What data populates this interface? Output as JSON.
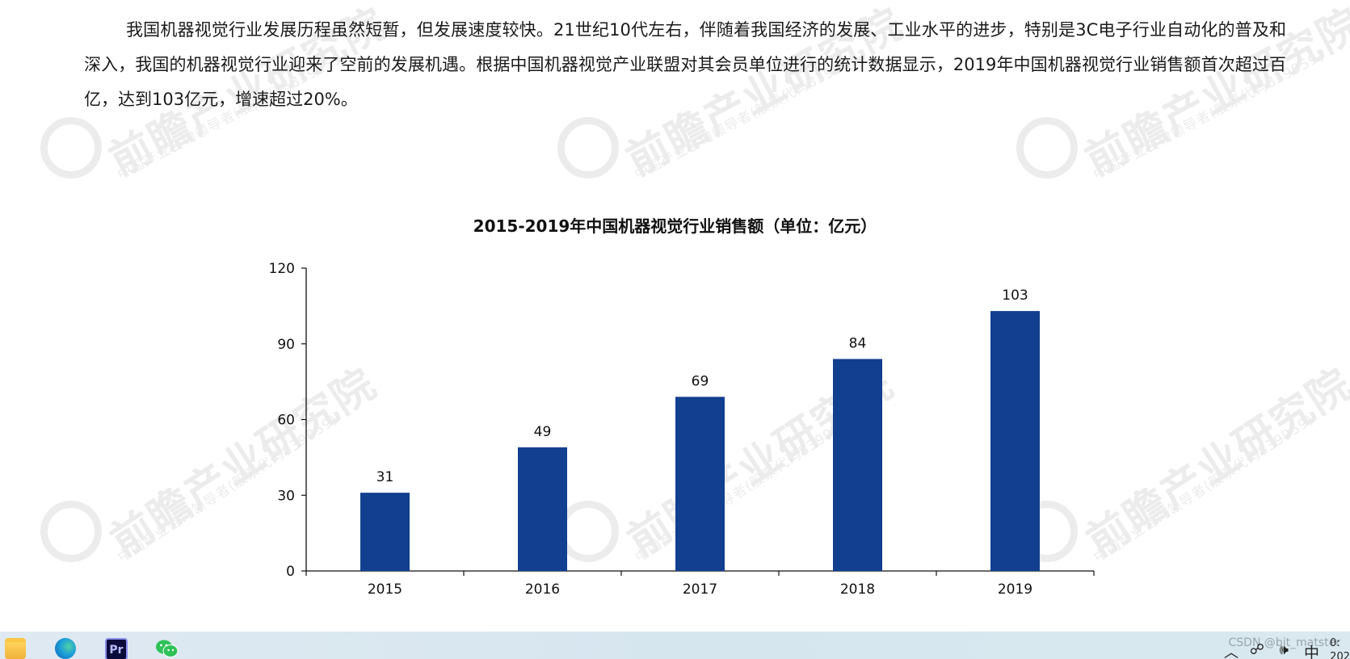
{
  "document": {
    "paragraph": "我国机器视觉行业发展历程虽然短暂，但发展速度较快。21世纪10代左右，伴随着我国经济的发展、工业水平的进步，特别是3C电子行业自动化的普及和深入，我国的机器视觉行业迎来了空前的发展机遇。根据中国机器视觉产业联盟对其会员单位进行的统计数据显示，2019年中国机器视觉行业销售额首次超过百亿，达到103亿元，增速超过20%。"
  },
  "watermark": {
    "main": "前瞻产业研究院",
    "sub": "中国产业咨询领导者(股票代码839959)"
  },
  "chart_data": {
    "type": "bar",
    "title": "2015-2019年中国机器视觉行业销售额（单位：亿元）",
    "categories": [
      "2015",
      "2016",
      "2017",
      "2018",
      "2019"
    ],
    "values": [
      31,
      49,
      69,
      84,
      103
    ],
    "data_labels": [
      "31",
      "49",
      "69",
      "84",
      "103"
    ],
    "ylim": [
      0,
      120
    ],
    "yticks": [
      0,
      30,
      60,
      90,
      120
    ],
    "ytick_labels": [
      "0",
      "30",
      "60",
      "90",
      "120"
    ],
    "xlabel": "",
    "ylabel": "",
    "grid": false,
    "legend": "none",
    "bar_color": "#123f8f"
  },
  "taskbar": {
    "apps": [
      {
        "name": "file-explorer",
        "icon": "folder-icon"
      },
      {
        "name": "edge",
        "icon": "edge-icon"
      },
      {
        "name": "premiere-pro",
        "icon": "premiere-icon",
        "label": "Pr"
      },
      {
        "name": "wechat",
        "icon": "wechat-icon"
      }
    ],
    "tray": {
      "watermark": "CSDN @bit_matster",
      "ime": "中",
      "clock_line1": "0:",
      "clock_line2": "202"
    }
  }
}
